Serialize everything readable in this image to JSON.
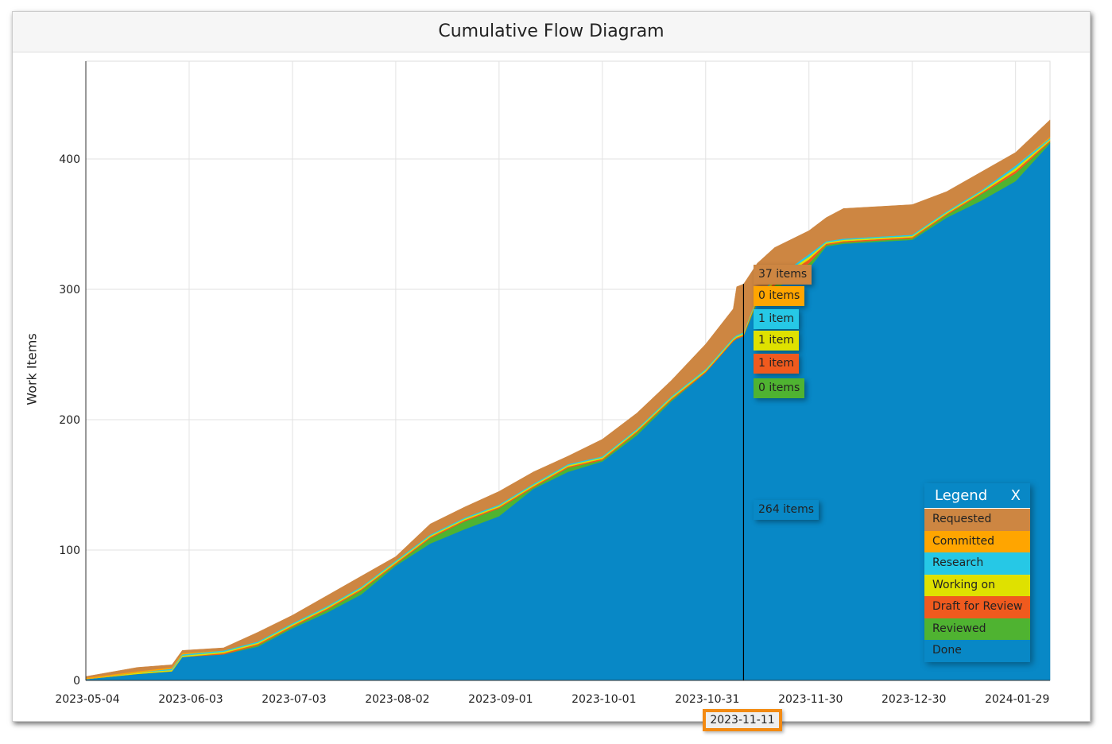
{
  "title": "Cumulative Flow Diagram",
  "chart_data": {
    "type": "area",
    "stacked": true,
    "title": "Cumulative Flow Diagram",
    "xlabel": "",
    "ylabel": "Work Items",
    "xlim": [
      "2023-05-04",
      "2024-02-08"
    ],
    "ylim": [
      0,
      475
    ],
    "yticks": [
      0,
      100,
      200,
      300,
      400
    ],
    "xticks": [
      "2023-05-04",
      "2023-06-03",
      "2023-07-03",
      "2023-08-02",
      "2023-09-01",
      "2023-10-01",
      "2023-10-31",
      "2023-11-30",
      "2023-12-30",
      "2024-01-29"
    ],
    "grid": true,
    "legend_placement": "bottom-right",
    "x": [
      "2023-05-04",
      "2023-05-19",
      "2023-05-29",
      "2023-06-01",
      "2023-06-13",
      "2023-06-23",
      "2023-07-03",
      "2023-07-13",
      "2023-07-23",
      "2023-08-02",
      "2023-08-12",
      "2023-08-22",
      "2023-09-01",
      "2023-09-11",
      "2023-09-21",
      "2023-10-01",
      "2023-10-11",
      "2023-10-21",
      "2023-10-31",
      "2023-11-08",
      "2023-11-09",
      "2023-11-11",
      "2023-11-15",
      "2023-11-20",
      "2023-11-30",
      "2023-12-05",
      "2023-12-10",
      "2023-12-30",
      "2024-01-09",
      "2024-01-19",
      "2024-01-29",
      "2024-02-08"
    ],
    "series": [
      {
        "name": "Done",
        "color": "#0888c6",
        "values": [
          1,
          5,
          7,
          18,
          20,
          26,
          40,
          52,
          66,
          88,
          105,
          116,
          126,
          147,
          160,
          168,
          188,
          214,
          236,
          260,
          262,
          264,
          290,
          300,
          316,
          333,
          335,
          338,
          355,
          368,
          383,
          412
        ]
      },
      {
        "name": "Reviewed",
        "color": "#4fb331",
        "values": [
          0,
          0,
          0,
          0,
          0,
          1,
          1,
          2,
          3,
          1,
          4,
          6,
          6,
          1,
          3,
          1,
          2,
          1,
          0,
          0,
          0,
          0,
          2,
          3,
          4,
          1,
          1,
          1,
          2,
          5,
          6,
          1
        ]
      },
      {
        "name": "Draft for Review",
        "color": "#f05a1e",
        "values": [
          0,
          0,
          0,
          0,
          1,
          1,
          1,
          1,
          1,
          1,
          1,
          1,
          1,
          1,
          1,
          1,
          1,
          1,
          1,
          1,
          1,
          1,
          1,
          2,
          3,
          1,
          1,
          1,
          1,
          1,
          2,
          1
        ]
      },
      {
        "name": "Working on",
        "color": "#dfe100",
        "values": [
          0,
          1,
          1,
          1,
          1,
          1,
          1,
          1,
          1,
          1,
          1,
          1,
          1,
          1,
          1,
          1,
          1,
          1,
          1,
          1,
          1,
          1,
          1,
          2,
          2,
          1,
          1,
          1,
          1,
          1,
          2,
          1
        ]
      },
      {
        "name": "Research",
        "color": "#26c8e6",
        "values": [
          0,
          0,
          1,
          1,
          1,
          1,
          1,
          1,
          1,
          1,
          1,
          1,
          1,
          1,
          1,
          1,
          1,
          1,
          1,
          1,
          1,
          1,
          1,
          1,
          2,
          1,
          1,
          1,
          1,
          1,
          2,
          1
        ]
      },
      {
        "name": "Committed",
        "color": "#ffa500",
        "values": [
          1,
          1,
          1,
          1,
          0,
          0,
          0,
          0,
          0,
          0,
          0,
          0,
          0,
          0,
          0,
          0,
          0,
          0,
          0,
          0,
          0,
          0,
          0,
          0,
          0,
          0,
          0,
          0,
          0,
          0,
          0,
          1
        ]
      },
      {
        "name": "Requested",
        "color": "#cd8642",
        "values": [
          1,
          3,
          2,
          2,
          2,
          7,
          6,
          8,
          8,
          3,
          8,
          8,
          10,
          9,
          6,
          13,
          12,
          12,
          19,
          22,
          37,
          37,
          25,
          24,
          18,
          18,
          23,
          23,
          15,
          14,
          10,
          13
        ]
      }
    ],
    "cursor": {
      "date": "2023-11-11",
      "labels": {
        "requested": "37 items",
        "committed": "0 items",
        "research": "1 item",
        "working": "1 item",
        "draft": "1 item",
        "reviewed": "0 items",
        "done": "264 items"
      }
    }
  },
  "legend": {
    "title": "Legend",
    "close": "X",
    "items": [
      {
        "label": "Requested",
        "color": "#cd8642"
      },
      {
        "label": "Committed",
        "color": "#ffa500"
      },
      {
        "label": "Research",
        "color": "#26c8e6"
      },
      {
        "label": "Working on",
        "color": "#dfe100"
      },
      {
        "label": "Draft for Review",
        "color": "#f05a1e"
      },
      {
        "label": "Reviewed",
        "color": "#4fb331"
      },
      {
        "label": "Done",
        "color": "#0888c6"
      }
    ]
  }
}
